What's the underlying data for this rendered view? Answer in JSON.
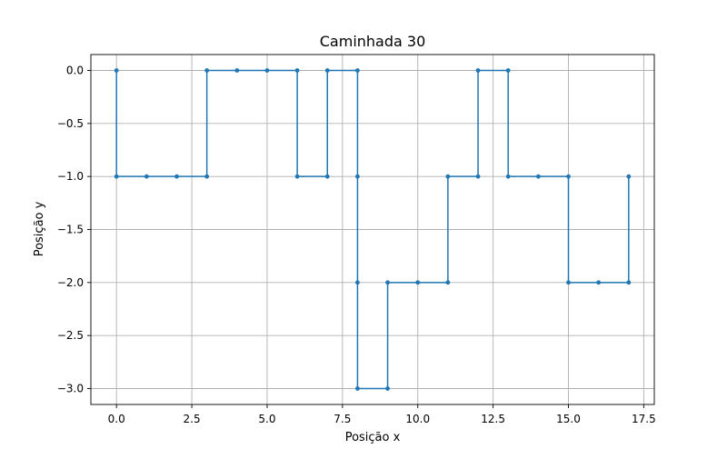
{
  "chart_data": {
    "type": "line",
    "title": "Caminhada 30",
    "xlabel": "Posição x",
    "ylabel": "Posição y",
    "xlim": [
      -0.85,
      17.85
    ],
    "ylim": [
      -3.15,
      0.15
    ],
    "xticks": [
      0.0,
      2.5,
      5.0,
      7.5,
      10.0,
      12.5,
      15.0,
      17.5
    ],
    "xtick_labels": [
      "0.0",
      "2.5",
      "5.0",
      "7.5",
      "10.0",
      "12.5",
      "15.0",
      "17.5"
    ],
    "yticks": [
      0.0,
      -0.5,
      -1.0,
      -1.5,
      -2.0,
      -2.5,
      -3.0
    ],
    "ytick_labels": [
      "0.0",
      "−0.5",
      "−1.0",
      "−1.5",
      "−2.0",
      "−2.5",
      "−3.0"
    ],
    "grid": true,
    "series": [
      {
        "color": "#1f77b4",
        "marker": "circle",
        "x": [
          0,
          0,
          1,
          2,
          3,
          3,
          4,
          5,
          6,
          6,
          7,
          7,
          8,
          8,
          8,
          8,
          9,
          9,
          10,
          11,
          11,
          12,
          12,
          13,
          13,
          14,
          15,
          15,
          16,
          17,
          17
        ],
        "y": [
          0,
          -1,
          -1,
          -1,
          -1,
          0,
          0,
          0,
          0,
          -1,
          -1,
          0,
          0,
          -1,
          -2,
          -3,
          -3,
          -2,
          -2,
          -2,
          -1,
          -1,
          0,
          0,
          -1,
          -1,
          -1,
          -2,
          -2,
          -2,
          -1
        ]
      }
    ]
  }
}
